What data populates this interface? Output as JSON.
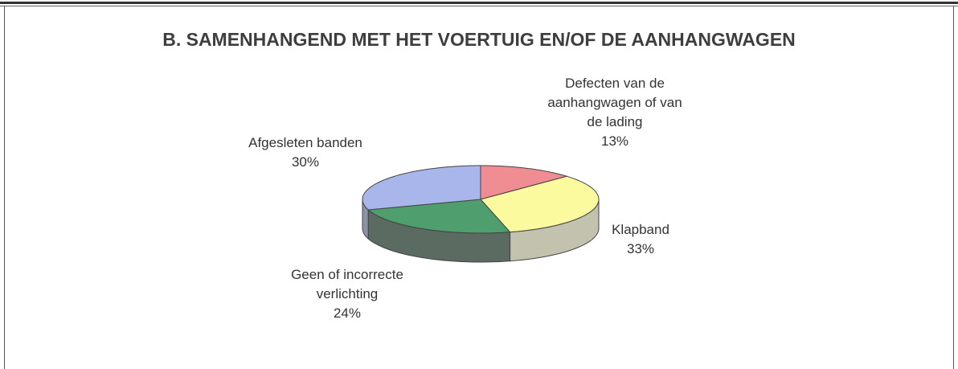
{
  "chart_data": {
    "type": "pie",
    "title": "B. SAMENHANGEND MET HET VOERTUIG EN/OF DE AANHANGWAGEN",
    "categories": [
      "Defecten van de\naanhangwagen of van\nde lading",
      "Klapband",
      "Geen of incorrecte\nverlichting",
      "Afgesleten banden"
    ],
    "values": [
      13,
      33,
      24,
      30
    ],
    "value_labels": [
      "13%",
      "33%",
      "24%",
      "30%"
    ],
    "colors": [
      "#ef8d92",
      "#fbfa9e",
      "#4f9e6e",
      "#a9b6ec"
    ],
    "side_colors": [
      "#b86a6e",
      "#c3c2ae",
      "#5b6b61",
      "#8d93a6"
    ]
  }
}
